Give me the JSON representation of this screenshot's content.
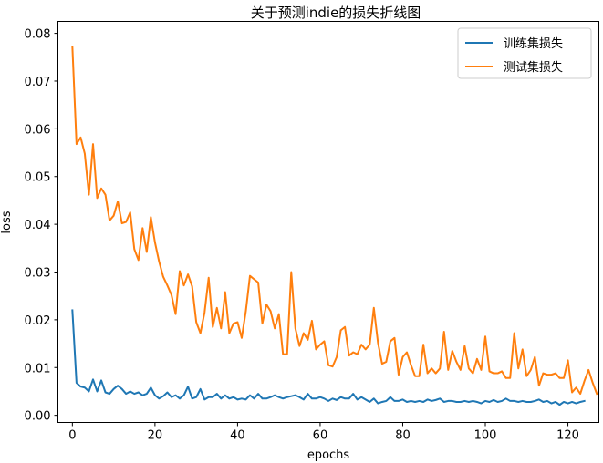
{
  "chart_data": {
    "type": "line",
    "title": "关于预测indie的损失折线图",
    "xlabel": "epochs",
    "ylabel": "loss",
    "xlim": [
      -3.5,
      127.5
    ],
    "ylim": [
      -0.0015,
      0.0825
    ],
    "xticks": [
      0,
      20,
      40,
      60,
      80,
      100,
      120
    ],
    "yticks": [
      0.0,
      0.01,
      0.02,
      0.03,
      0.04,
      0.05,
      0.06,
      0.07,
      0.08
    ],
    "ytick_labels": [
      "0.00",
      "0.01",
      "0.02",
      "0.03",
      "0.04",
      "0.05",
      "0.06",
      "0.07",
      "0.08"
    ],
    "legend_position": "top-right",
    "grid": false,
    "series": [
      {
        "name": "训练集损失",
        "color": "#1f77b4",
        "values": [
          0.022,
          0.0068,
          0.006,
          0.0058,
          0.005,
          0.0075,
          0.005,
          0.0073,
          0.0048,
          0.0045,
          0.0055,
          0.0062,
          0.0055,
          0.0045,
          0.005,
          0.0045,
          0.0048,
          0.0042,
          0.0045,
          0.0058,
          0.0042,
          0.0035,
          0.004,
          0.0048,
          0.0038,
          0.0042,
          0.0035,
          0.0042,
          0.006,
          0.0035,
          0.0038,
          0.0055,
          0.0033,
          0.0038,
          0.0038,
          0.0045,
          0.0035,
          0.0042,
          0.0035,
          0.0038,
          0.0033,
          0.0035,
          0.0033,
          0.0042,
          0.0035,
          0.0045,
          0.0035,
          0.0035,
          0.0038,
          0.0042,
          0.0038,
          0.0035,
          0.0038,
          0.004,
          0.0042,
          0.0038,
          0.0033,
          0.0045,
          0.0035,
          0.0035,
          0.0038,
          0.0035,
          0.003,
          0.0035,
          0.0032,
          0.0038,
          0.0035,
          0.0035,
          0.0045,
          0.0033,
          0.0038,
          0.0033,
          0.0028,
          0.0035,
          0.0025,
          0.0028,
          0.003,
          0.0038,
          0.003,
          0.003,
          0.0033,
          0.0028,
          0.003,
          0.0028,
          0.003,
          0.0028,
          0.0033,
          0.003,
          0.0032,
          0.0035,
          0.0028,
          0.003,
          0.003,
          0.0028,
          0.0028,
          0.003,
          0.0028,
          0.003,
          0.0028,
          0.0025,
          0.003,
          0.0028,
          0.0032,
          0.0028,
          0.003,
          0.0035,
          0.003,
          0.003,
          0.0028,
          0.003,
          0.0028,
          0.0028,
          0.003,
          0.0033,
          0.0028,
          0.003,
          0.0025,
          0.0028,
          0.0022,
          0.0028,
          0.0025,
          0.0028,
          0.0025,
          0.0028,
          0.003
        ]
      },
      {
        "name": "测试集损失",
        "color": "#ff7f0e",
        "values": [
          0.0772,
          0.0568,
          0.0582,
          0.0548,
          0.0462,
          0.0568,
          0.0455,
          0.0475,
          0.0462,
          0.0408,
          0.0418,
          0.0448,
          0.0402,
          0.0405,
          0.0425,
          0.0348,
          0.0325,
          0.0392,
          0.0342,
          0.0415,
          0.0362,
          0.0322,
          0.029,
          0.0272,
          0.0252,
          0.0212,
          0.0302,
          0.0272,
          0.0295,
          0.027,
          0.0195,
          0.0172,
          0.0215,
          0.0288,
          0.0185,
          0.0225,
          0.0182,
          0.0258,
          0.0172,
          0.0192,
          0.0195,
          0.0162,
          0.0218,
          0.0292,
          0.0285,
          0.0278,
          0.0192,
          0.0232,
          0.0218,
          0.0182,
          0.0212,
          0.0128,
          0.0128,
          0.03,
          0.0182,
          0.0145,
          0.0172,
          0.0158,
          0.0198,
          0.0138,
          0.0148,
          0.0155,
          0.0105,
          0.0102,
          0.0122,
          0.0178,
          0.0185,
          0.0125,
          0.0132,
          0.0128,
          0.0148,
          0.0138,
          0.0148,
          0.0225,
          0.0152,
          0.0108,
          0.0112,
          0.0155,
          0.0162,
          0.0085,
          0.0122,
          0.0132,
          0.0105,
          0.0082,
          0.0082,
          0.0148,
          0.0088,
          0.0098,
          0.0088,
          0.0098,
          0.0175,
          0.0095,
          0.0135,
          0.0112,
          0.0095,
          0.0145,
          0.0098,
          0.0088,
          0.0118,
          0.0095,
          0.0165,
          0.0092,
          0.0088,
          0.0088,
          0.0092,
          0.0078,
          0.0078,
          0.0172,
          0.0098,
          0.0138,
          0.0082,
          0.0095,
          0.0122,
          0.0062,
          0.0088,
          0.0085,
          0.0085,
          0.0088,
          0.0078,
          0.0078,
          0.0115,
          0.0048,
          0.0058,
          0.0045,
          0.0072,
          0.0095,
          0.0068,
          0.0045
        ]
      }
    ]
  }
}
